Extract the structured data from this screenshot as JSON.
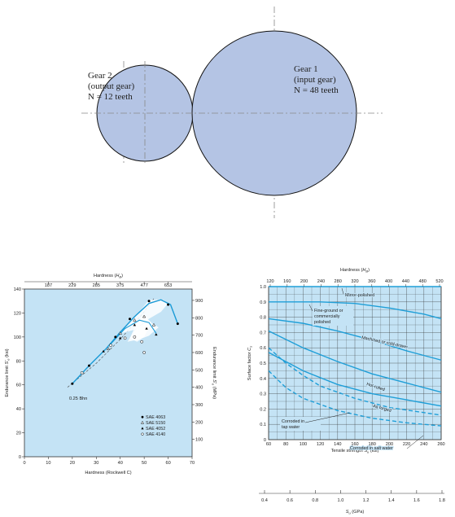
{
  "gears": {
    "gear2": {
      "line1": "Gear 2",
      "line2": "(output gear)",
      "line3": "N = 12 teeth"
    },
    "gear1": {
      "line1": "Gear 1",
      "line2": "(input gear)",
      "line3": "N = 48 teeth"
    },
    "fill_color": "#b4c4e4",
    "centerline_color": "#888888"
  },
  "chart_data": [
    {
      "type": "line",
      "top_axis": {
        "label": "Hardness (H_B)",
        "ticks": [
          "187",
          "229",
          "285",
          "375",
          "477",
          "653"
        ],
        "tick_rockwell": [
          10,
          20,
          30,
          40,
          50,
          60
        ]
      },
      "xlabel": "Hardness (Rockwell C)",
      "xlim": [
        0,
        70
      ],
      "xticks": [
        0,
        10,
        20,
        30,
        40,
        50,
        60,
        70
      ],
      "ylabel_left": "Endurance limit S'e (ksi)",
      "ylim_left": [
        0,
        140
      ],
      "yticks_left": [
        0,
        20,
        40,
        60,
        80,
        100,
        120,
        140
      ],
      "ylabel_right": "Endurance limit S'e (MPa)",
      "yticks_right": [
        100,
        200,
        300,
        400,
        500,
        600,
        700,
        800,
        900
      ],
      "annotation": "0.25 Bhn",
      "series": [
        {
          "name": "SAE 4063",
          "marker": "filled-circle",
          "points": [
            [
              20,
              61
            ],
            [
              27,
              76
            ],
            [
              38,
              100
            ],
            [
              44,
              115
            ],
            [
              52,
              130
            ],
            [
              60,
              127
            ],
            [
              64,
              111
            ]
          ]
        },
        {
          "name": "SAE 5150",
          "marker": "open-triangle",
          "points": [
            [
              35,
              90
            ],
            [
              40,
              103
            ],
            [
              46,
              114
            ],
            [
              50,
              117
            ],
            [
              54,
              110
            ]
          ]
        },
        {
          "name": "SAE 4052",
          "marker": "filled-triangle",
          "points": [
            [
              33,
              88
            ],
            [
              40,
              99
            ],
            [
              46,
              110
            ],
            [
              51,
              107
            ],
            [
              55,
              102
            ]
          ]
        },
        {
          "name": "SAE 4140",
          "marker": "open-circle",
          "points": [
            [
              24,
              70
            ],
            [
              36,
              93
            ],
            [
              42,
              99
            ],
            [
              46,
              100
            ],
            [
              49,
              96
            ],
            [
              50,
              87
            ]
          ]
        }
      ],
      "band_color": "#1a9ad6",
      "plot_bg": "#c4e3f5"
    },
    {
      "type": "line",
      "top_axis": {
        "label": "Hardness (H_B)",
        "ticks": [
          "120",
          "160",
          "200",
          "240",
          "280",
          "320",
          "360",
          "400",
          "440",
          "480",
          "520"
        ]
      },
      "xlabel": "Tensile strength Su (ksi)",
      "xlim": [
        60,
        260
      ],
      "xticks": [
        60,
        80,
        100,
        120,
        140,
        160,
        180,
        200,
        220,
        240,
        260
      ],
      "ylabel": "Surface factor Cs",
      "ylim": [
        0,
        1.0
      ],
      "yticks": [
        "0",
        "0.1",
        "0.2",
        "0.3",
        "0.4",
        "0.5",
        "0.6",
        "0.7",
        "0.8",
        "0.9",
        "1.0"
      ],
      "bottom_axis": {
        "label": "Su (GPa)",
        "ticks": [
          "0.4",
          "0.6",
          "0.8",
          "1.0",
          "1.2",
          "1.4",
          "1.6",
          "1.8"
        ]
      },
      "series": [
        {
          "name": "Mirror-polished",
          "dashed": false,
          "points": [
            [
              60,
              1.0
            ],
            [
              260,
              1.0
            ]
          ]
        },
        {
          "name": "Fine-ground or commercially polished",
          "dashed": false,
          "points": [
            [
              60,
              0.9
            ],
            [
              120,
              0.9
            ],
            [
              160,
              0.89
            ],
            [
              200,
              0.86
            ],
            [
              240,
              0.82
            ],
            [
              260,
              0.79
            ]
          ]
        },
        {
          "name": "Machined or cold-drawn",
          "dashed": false,
          "points": [
            [
              60,
              0.79
            ],
            [
              100,
              0.76
            ],
            [
              140,
              0.71
            ],
            [
              180,
              0.65
            ],
            [
              220,
              0.58
            ],
            [
              260,
              0.52
            ]
          ]
        },
        {
          "name": "Hot-rolled",
          "dashed": false,
          "points": [
            [
              60,
              0.71
            ],
            [
              100,
              0.6
            ],
            [
              140,
              0.51
            ],
            [
              180,
              0.43
            ],
            [
              220,
              0.37
            ],
            [
              260,
              0.31
            ]
          ]
        },
        {
          "name": "As forged",
          "dashed": false,
          "points": [
            [
              60,
              0.57
            ],
            [
              100,
              0.45
            ],
            [
              140,
              0.36
            ],
            [
              180,
              0.3
            ],
            [
              220,
              0.26
            ],
            [
              260,
              0.22
            ]
          ]
        },
        {
          "name": "Corroded in tap water",
          "dashed": true,
          "points": [
            [
              60,
              0.6
            ],
            [
              80,
              0.5
            ],
            [
              100,
              0.42
            ],
            [
              120,
              0.35
            ],
            [
              160,
              0.27
            ],
            [
              200,
              0.21
            ],
            [
              260,
              0.16
            ]
          ]
        },
        {
          "name": "Corroded in salt water",
          "dashed": true,
          "points": [
            [
              60,
              0.45
            ],
            [
              80,
              0.34
            ],
            [
              100,
              0.27
            ],
            [
              140,
              0.19
            ],
            [
              180,
              0.14
            ],
            [
              220,
              0.11
            ],
            [
              260,
              0.09
            ]
          ]
        }
      ],
      "line_color": "#1f9fd8",
      "plot_bg": "#c4e3f5"
    }
  ]
}
